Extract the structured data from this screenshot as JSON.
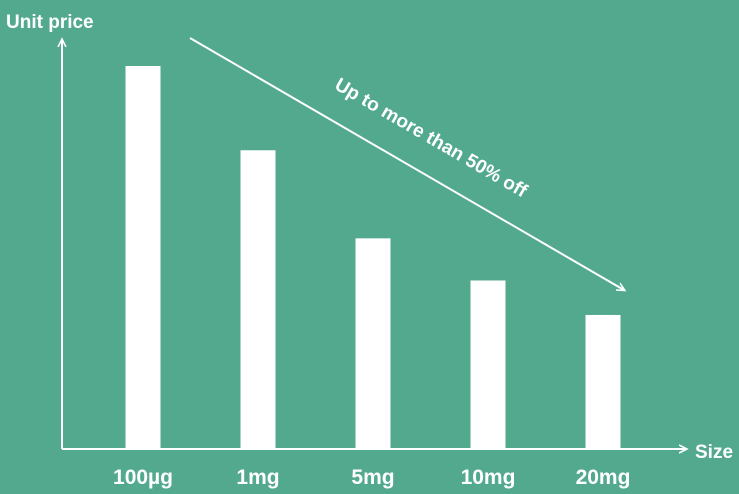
{
  "chart_data": {
    "type": "bar",
    "ylabel": "Unit price",
    "xlabel": "Size",
    "categories": [
      "100µg",
      "1mg",
      "5mg",
      "10mg",
      "20mg"
    ],
    "values": [
      100,
      78,
      55,
      44,
      35
    ],
    "ylim": [
      0,
      100
    ],
    "grid": false,
    "annotation": "Up to more than 50% off",
    "colors": {
      "background": "#52a98e",
      "bars": "#ffffff",
      "text": "#ffffff",
      "axes": "#ffffff"
    }
  }
}
